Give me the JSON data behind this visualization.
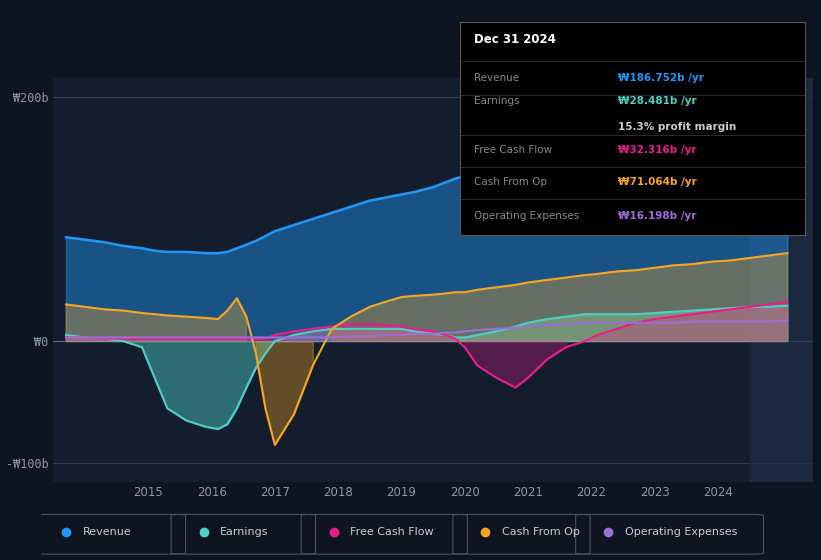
{
  "background_color": "#0e1420",
  "plot_bg_color": "#141d2e",
  "ylabel_200": "₩200b",
  "ylabel_0": "₩0",
  "ylabel_neg100": "-₩100b",
  "xlim": [
    2013.5,
    2025.5
  ],
  "ylim": [
    -115,
    215
  ],
  "colors": {
    "revenue": "#2196f3",
    "earnings": "#4dd0c4",
    "free_cash_flow": "#e91e8c",
    "cash_from_op": "#f5a623",
    "operating_expenses": "#9c6fd6"
  },
  "legend_items": [
    {
      "label": "Revenue",
      "color": "#2196f3"
    },
    {
      "label": "Earnings",
      "color": "#4dd0c4"
    },
    {
      "label": "Free Cash Flow",
      "color": "#e91e8c"
    },
    {
      "label": "Cash From Op",
      "color": "#f5a623"
    },
    {
      "label": "Operating Expenses",
      "color": "#9c6fd6"
    }
  ],
  "tooltip": {
    "date": "Dec 31 2024",
    "revenue_label": "Revenue",
    "revenue_value": "₩186.752b",
    "revenue_color": "#2196f3",
    "earnings_label": "Earnings",
    "earnings_value": "₩28.481b",
    "earnings_color": "#4dd0c4",
    "profit_margin": "15.3% profit margin",
    "fcf_label": "Free Cash Flow",
    "fcf_value": "₩32.316b",
    "fcf_color": "#e91e8c",
    "cfo_label": "Cash From Op",
    "cfo_value": "₩71.064b",
    "cfo_color": "#f5a623",
    "opex_label": "Operating Expenses",
    "opex_value": "₩16.198b",
    "opex_color": "#9c6fd6"
  },
  "data": {
    "years": [
      2013.7,
      2014.0,
      2014.3,
      2014.6,
      2014.9,
      2015.1,
      2015.3,
      2015.6,
      2015.9,
      2016.1,
      2016.25,
      2016.4,
      2016.55,
      2016.7,
      2016.85,
      2017.0,
      2017.3,
      2017.6,
      2017.9,
      2018.2,
      2018.5,
      2018.8,
      2019.0,
      2019.2,
      2019.5,
      2019.7,
      2019.85,
      2020.0,
      2020.2,
      2020.5,
      2020.8,
      2021.0,
      2021.3,
      2021.6,
      2021.9,
      2022.1,
      2022.4,
      2022.7,
      2023.0,
      2023.3,
      2023.6,
      2023.9,
      2024.2,
      2024.5,
      2024.8,
      2025.1
    ],
    "revenue": [
      85,
      83,
      81,
      78,
      76,
      74,
      73,
      73,
      72,
      72,
      73,
      76,
      79,
      82,
      86,
      90,
      95,
      100,
      105,
      110,
      115,
      118,
      120,
      122,
      126,
      130,
      133,
      135,
      138,
      143,
      148,
      153,
      158,
      163,
      165,
      166,
      168,
      170,
      172,
      174,
      176,
      178,
      181,
      184,
      187,
      190
    ],
    "earnings": [
      5,
      3,
      2,
      0,
      -5,
      -30,
      -55,
      -65,
      -70,
      -72,
      -68,
      -55,
      -38,
      -22,
      -10,
      0,
      5,
      8,
      10,
      10,
      10,
      10,
      10,
      8,
      6,
      5,
      3,
      3,
      5,
      8,
      12,
      15,
      18,
      20,
      22,
      22,
      22,
      22,
      23,
      24,
      25,
      26,
      27,
      28,
      28,
      29
    ],
    "free_cash_flow": [
      3,
      3,
      2,
      2,
      2,
      2,
      2,
      2,
      2,
      2,
      2,
      2,
      2,
      2,
      2,
      5,
      8,
      10,
      12,
      14,
      14,
      13,
      12,
      10,
      8,
      5,
      2,
      -5,
      -20,
      -30,
      -38,
      -30,
      -15,
      -5,
      0,
      5,
      10,
      15,
      18,
      20,
      22,
      24,
      26,
      28,
      30,
      32
    ],
    "cash_from_op": [
      30,
      28,
      26,
      25,
      23,
      22,
      21,
      20,
      19,
      18,
      25,
      35,
      20,
      -10,
      -55,
      -85,
      -60,
      -20,
      10,
      20,
      28,
      33,
      36,
      37,
      38,
      39,
      40,
      40,
      42,
      44,
      46,
      48,
      50,
      52,
      54,
      55,
      57,
      58,
      60,
      62,
      63,
      65,
      66,
      68,
      70,
      72
    ],
    "operating_expenses": [
      3,
      3,
      3,
      3,
      3,
      3,
      3,
      3,
      3,
      3,
      3,
      3,
      3,
      3,
      3,
      3,
      3,
      3,
      3,
      4,
      4,
      5,
      5,
      6,
      6,
      7,
      7,
      8,
      9,
      10,
      11,
      12,
      13,
      14,
      15,
      15,
      15,
      15,
      15,
      15,
      16,
      16,
      16,
      16,
      16,
      17
    ]
  }
}
